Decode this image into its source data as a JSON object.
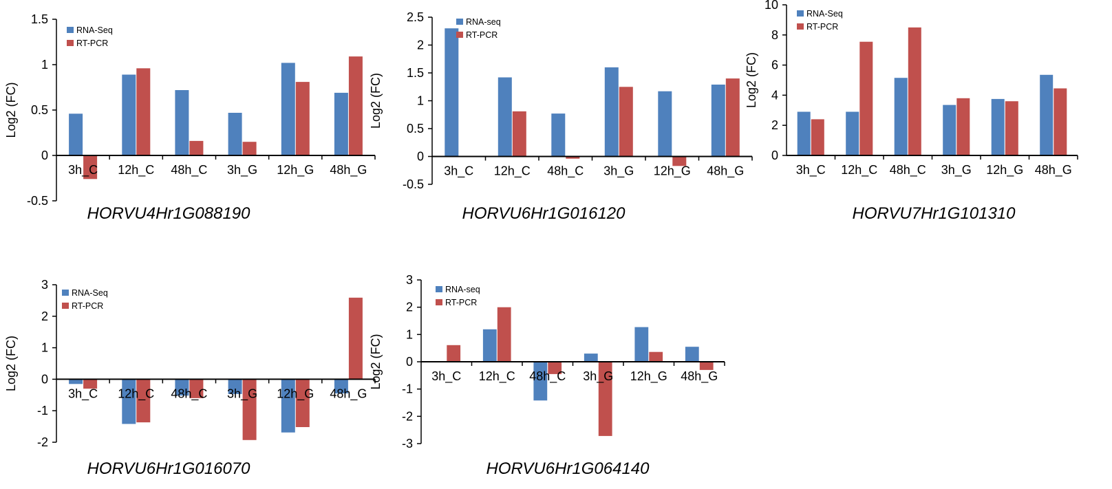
{
  "colors": {
    "rna": "#4F81BD",
    "pcr": "#C0504D",
    "axis": "#000000"
  },
  "chart_data": [
    {
      "type": "bar",
      "title": "HORVU4Hr1G088190",
      "ylabel": "Log2 (FC)",
      "xlabel": "",
      "categories": [
        "3h_C",
        "12h_C",
        "48h_C",
        "3h_G",
        "12h_G",
        "48h_G"
      ],
      "ylim": [
        -0.5,
        1.5
      ],
      "yticks": [
        -0.5,
        0,
        0.5,
        1,
        1.5
      ],
      "ytick_labels": [
        "-0.5",
        "0",
        "0.5",
        "1",
        "1.5"
      ],
      "legend_position": "top-left",
      "series": [
        {
          "name": "RNA-Seq",
          "values": [
            0.46,
            0.89,
            0.72,
            0.47,
            1.02,
            0.69
          ]
        },
        {
          "name": "RT-PCR",
          "values": [
            -0.26,
            0.96,
            0.16,
            0.15,
            0.81,
            1.09
          ]
        }
      ]
    },
    {
      "type": "bar",
      "title": "HORVU6Hr1G016120",
      "ylabel": "Log2 (FC)",
      "xlabel": "",
      "categories": [
        "3h_C",
        "12h_C",
        "48h_C",
        "3h_G",
        "12h_G",
        "48h_G"
      ],
      "ylim": [
        -0.5,
        2.5
      ],
      "yticks": [
        -0.5,
        0,
        0.5,
        1,
        1.5,
        2,
        2.5
      ],
      "ytick_labels": [
        "-0.5",
        "0",
        "0.5",
        "1",
        "1.5",
        "2",
        "2.5"
      ],
      "legend_position": "top-center",
      "series": [
        {
          "name": "RNA-seq",
          "values": [
            2.3,
            1.42,
            0.77,
            1.6,
            1.17,
            1.29
          ]
        },
        {
          "name": "RT-PCR",
          "values": [
            0.0,
            0.81,
            -0.04,
            1.25,
            -0.17,
            1.4
          ]
        }
      ]
    },
    {
      "type": "bar",
      "title": "HORVU7Hr1G101310",
      "ylabel": "Log2 (FC)",
      "xlabel": "",
      "categories": [
        "3h_C",
        "12h_C",
        "48h_C",
        "3h_G",
        "12h_G",
        "48h_G"
      ],
      "ylim": [
        0,
        10
      ],
      "yticks": [
        0,
        2,
        4,
        6,
        8,
        10
      ],
      "ytick_labels": [
        "0",
        "2",
        "4",
        "6",
        "8",
        "10"
      ],
      "legend_position": "top-left",
      "series": [
        {
          "name": "RNA-Seq",
          "values": [
            2.9,
            2.9,
            5.15,
            3.35,
            3.75,
            5.35
          ]
        },
        {
          "name": "RT-PCR",
          "values": [
            2.4,
            7.55,
            8.5,
            3.8,
            3.6,
            4.45
          ]
        }
      ]
    },
    {
      "type": "bar",
      "title": "HORVU6Hr1G016070",
      "ylabel": "Log2 (FC)",
      "xlabel": "",
      "categories": [
        "3h_C",
        "12h_C",
        "48h_C",
        "3h_G",
        "12h_G",
        "48h_G"
      ],
      "ylim": [
        -2,
        3
      ],
      "yticks": [
        -2,
        -1,
        0,
        1,
        2,
        3
      ],
      "ytick_labels": [
        "-2",
        "-1",
        "0",
        "1",
        "2",
        "3"
      ],
      "legend_position": "top-left",
      "series": [
        {
          "name": "RNA-Seq",
          "values": [
            -0.15,
            -1.42,
            -0.52,
            -0.47,
            -1.69,
            -0.45
          ]
        },
        {
          "name": "RT-PCR",
          "values": [
            -0.3,
            -1.37,
            -0.6,
            -1.93,
            -1.52,
            2.59
          ]
        }
      ]
    },
    {
      "type": "bar",
      "title": "HORVU6Hr1G064140",
      "ylabel": "Log2 (FC)",
      "xlabel": "",
      "categories": [
        "3h_C",
        "12h_C",
        "48h_C",
        "3h_G",
        "12h_G",
        "48h_G"
      ],
      "ylim": [
        -3,
        3
      ],
      "yticks": [
        -3,
        -2,
        -1,
        0,
        1,
        2,
        3
      ],
      "ytick_labels": [
        "-3",
        "-2",
        "-1",
        "0",
        "1",
        "2",
        "3"
      ],
      "legend_position": "top-left",
      "series": [
        {
          "name": "RNA-seq",
          "values": [
            0.0,
            1.19,
            -1.42,
            0.3,
            1.27,
            0.55
          ]
        },
        {
          "name": "RT-PCR",
          "values": [
            0.61,
            2.0,
            -0.45,
            -2.72,
            0.36,
            -0.3
          ]
        }
      ]
    }
  ]
}
